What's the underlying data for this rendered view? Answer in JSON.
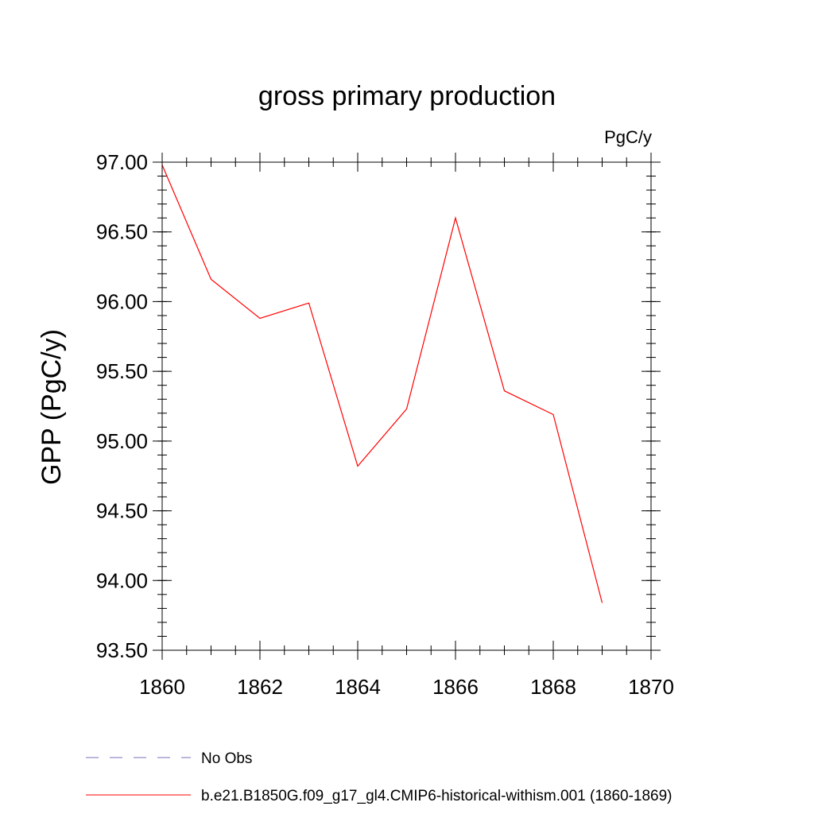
{
  "chart_data": {
    "type": "line",
    "title": "gross primary production",
    "units_label": "PgC/y",
    "ylabel": "GPP  (PgC/y)",
    "xlabel": "",
    "xlim": [
      1860,
      1870
    ],
    "ylim": [
      93.5,
      97.0
    ],
    "x_ticks": [
      1860,
      1862,
      1864,
      1866,
      1868,
      1870
    ],
    "x_tick_labels": [
      "1860",
      "1862",
      "1864",
      "1866",
      "1868",
      "1870"
    ],
    "y_ticks": [
      93.5,
      94.0,
      94.5,
      95.0,
      95.5,
      96.0,
      96.5,
      97.0
    ],
    "y_tick_labels": [
      "93.50",
      "94.00",
      "94.50",
      "95.00",
      "95.50",
      "96.00",
      "96.50",
      "97.00"
    ],
    "grid": false,
    "legend_position": "bottom",
    "series": [
      {
        "name": "b.e21.B1850G.f09_g17_gl4.CMIP6-historical-withism.001 (1860-1869)",
        "color": "#ff0000",
        "x": [
          1860,
          1861,
          1862,
          1863,
          1864,
          1865,
          1866,
          1867,
          1868,
          1869
        ],
        "values": [
          96.98,
          96.16,
          95.88,
          95.99,
          94.82,
          95.23,
          96.6,
          95.36,
          95.19,
          93.84
        ]
      }
    ],
    "legend": [
      {
        "label": "No Obs",
        "color": "#7a6fb5",
        "style": "dashed"
      },
      {
        "label": "b.e21.B1850G.f09_g17_gl4.CMIP6-historical-withism.001 (1860-1869)",
        "color": "#ff0000",
        "style": "solid"
      }
    ]
  }
}
